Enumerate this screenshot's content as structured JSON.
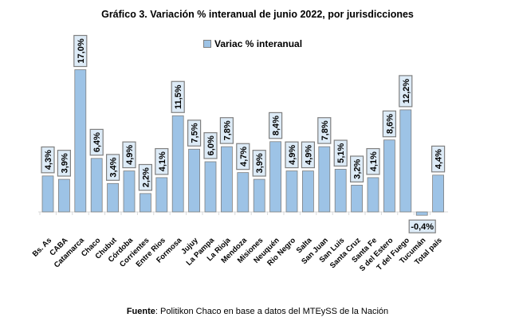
{
  "chart_data": {
    "type": "bar",
    "title": "Gráfico 3. Variación % interanual de junio 2022, por jurisdicciones",
    "legend": {
      "label": "Variac % interanual",
      "position": "top-center"
    },
    "series": [
      {
        "name": "Variac % interanual",
        "color": "#9dc3e6"
      }
    ],
    "categories": [
      "Bs. As",
      "CABA",
      "Catamarca",
      "Chaco",
      "Chubut",
      "Córdoba",
      "Corrientes",
      "Entre Rios",
      "Formosa",
      "Jujuy",
      "La Pampa",
      "La Rioja",
      "Mendoza",
      "Misiones",
      "Neuquén",
      "Rio Negro",
      "Salta",
      "San Juan",
      "San Luis",
      "Santa Cruz",
      "Santa Fe",
      "S del Estero",
      "T del Fuego",
      "Tucumán",
      "Total país"
    ],
    "values": [
      4.3,
      3.9,
      17.0,
      6.4,
      3.4,
      4.9,
      2.2,
      4.1,
      11.5,
      7.5,
      6.0,
      7.8,
      4.7,
      3.9,
      8.4,
      4.9,
      4.9,
      7.8,
      5.1,
      3.2,
      4.1,
      8.6,
      12.2,
      -0.4,
      4.4
    ],
    "data_labels": [
      "4,3%",
      "3,9%",
      "17,0%",
      "6,4%",
      "3,4%",
      "4,9%",
      "2,2%",
      "4,1%",
      "11,5%",
      "7,5%",
      "6,0%",
      "7,8%",
      "4,7%",
      "3,9%",
      "8,4%",
      "4,9%",
      "4,9%",
      "7,8%",
      "5,1%",
      "3,2%",
      "4,1%",
      "8,6%",
      "12,2%",
      "-0,4%",
      "4,4%"
    ],
    "xlabel": "",
    "ylabel": "",
    "grid": false
  },
  "source": {
    "label": "Fuente",
    "text": ": Politikon Chaco en base a datos del MTEySS de la Nación"
  }
}
